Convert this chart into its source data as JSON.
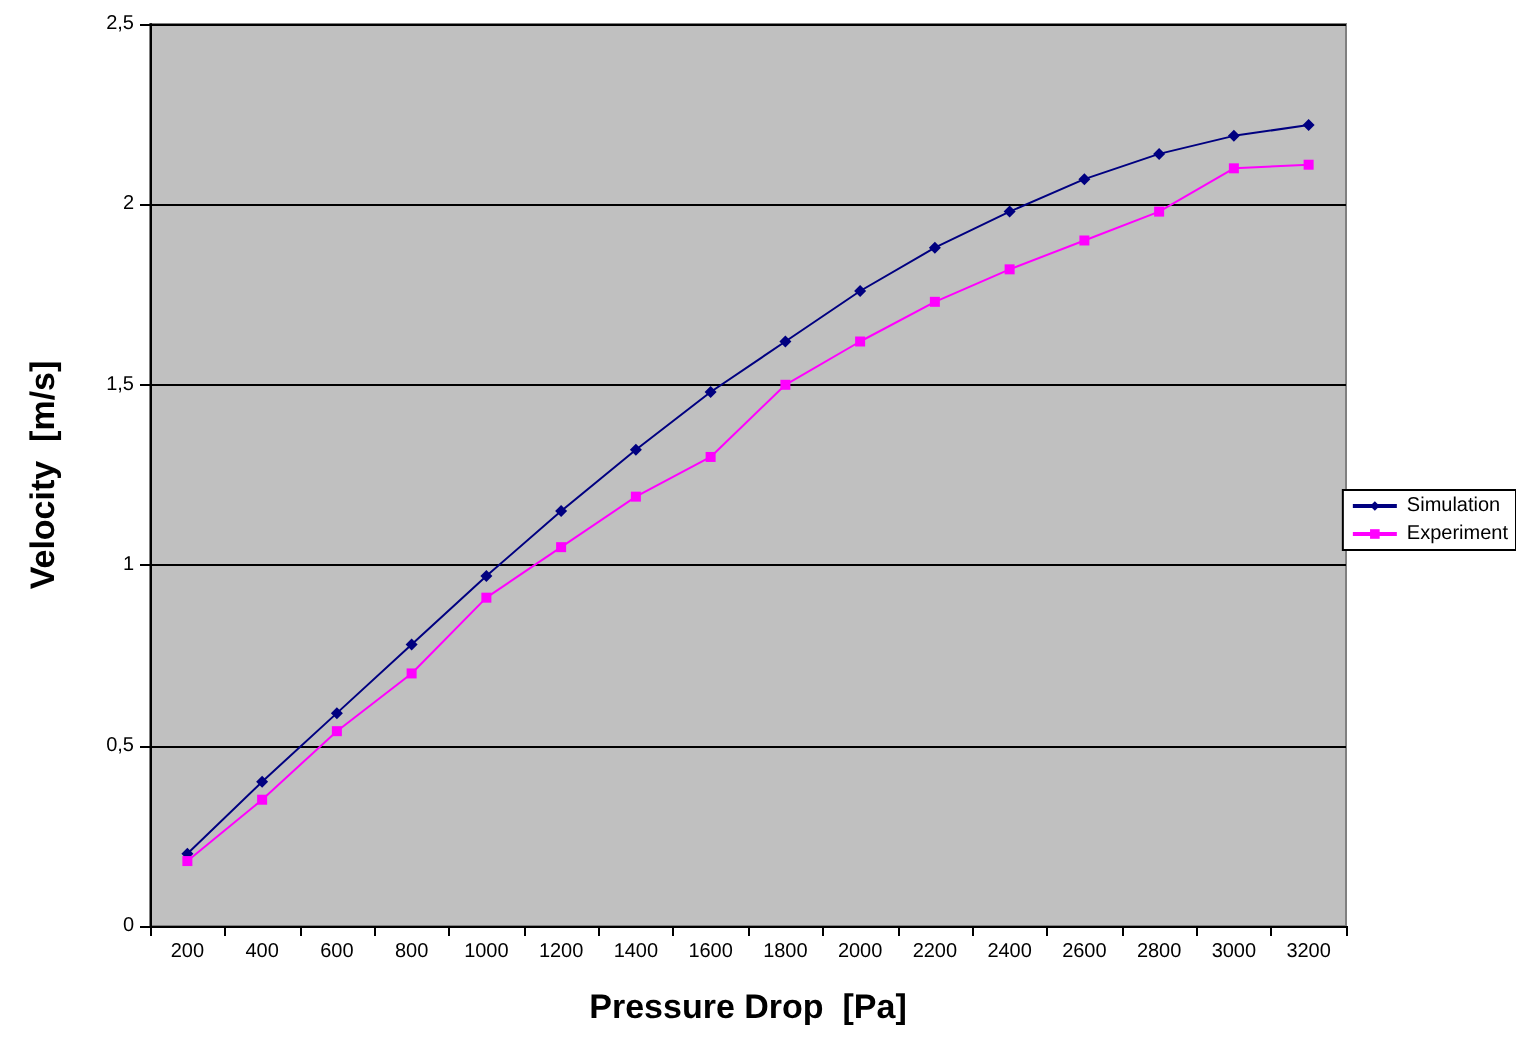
{
  "chart_data": {
    "type": "line",
    "xlabel": "Pressure Drop  [Pa]",
    "ylabel": "Velocity  [m/s]",
    "categories": [
      "200",
      "400",
      "600",
      "800",
      "1000",
      "1200",
      "1400",
      "1600",
      "1800",
      "2000",
      "2200",
      "2400",
      "2600",
      "2800",
      "3000",
      "3200"
    ],
    "series": [
      {
        "name": "Simulation",
        "color": "#000080",
        "marker": "diamond",
        "values": [
          0.2,
          0.4,
          0.59,
          0.78,
          0.97,
          1.15,
          1.32,
          1.48,
          1.62,
          1.76,
          1.88,
          1.98,
          2.07,
          2.14,
          2.19,
          2.22
        ]
      },
      {
        "name": "Experiment",
        "color": "#ff00ff",
        "marker": "square",
        "values": [
          0.18,
          0.35,
          0.54,
          0.7,
          0.91,
          1.05,
          1.19,
          1.3,
          1.5,
          1.62,
          1.73,
          1.82,
          1.9,
          1.98,
          2.1,
          2.11
        ]
      }
    ],
    "ylim": [
      0,
      2.5
    ],
    "yticks": [
      0,
      {
        "value": 0.5,
        "label": "0,5"
      },
      1,
      {
        "value": 1.5,
        "label": "1,5"
      },
      2,
      {
        "value": 2.5,
        "label": "2,5"
      }
    ],
    "grid": "y",
    "legend": "right",
    "line_style": "solid"
  }
}
